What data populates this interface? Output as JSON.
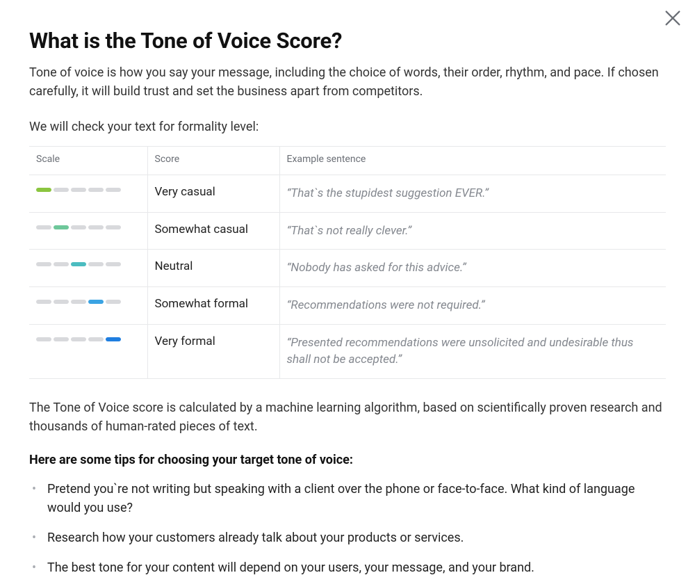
{
  "title": "What is the Tone of Voice Score?",
  "intro": "Tone of voice is how you say your message, including the choice of words, their order, rhythm, and pace. If chosen carefully, it will build trust and set the business apart from competitors.",
  "subintro": "We will check your text for formality level:",
  "table": {
    "columns": [
      "Scale",
      "Score",
      "Example sentence"
    ],
    "segment_count": 5,
    "inactive_color": "#d8d9dc",
    "rows": [
      {
        "active_index": 0,
        "active_color": "#8bc540",
        "score": "Very casual",
        "example": "“That`s the stupidest suggestion EVER.”"
      },
      {
        "active_index": 1,
        "active_color": "#6ec79a",
        "score": "Somewhat casual",
        "example": "“That`s not really clever.”"
      },
      {
        "active_index": 2,
        "active_color": "#4bbcc0",
        "score": "Neutral",
        "example": "“Nobody has asked for this advice.”"
      },
      {
        "active_index": 3,
        "active_color": "#3aa3e3",
        "score": "Somewhat formal",
        "example": "“Recommendations were not required.”"
      },
      {
        "active_index": 4,
        "active_color": "#1f7ee0",
        "score": "Very formal",
        "example": "“Presented recommendations were unsolicited and undesirable thus shall not be accepted.”"
      }
    ]
  },
  "explain": "The Tone of Voice score is calculated by a machine learning algorithm, based on scientifically proven research and thousands of human-rated pieces of text.",
  "tips_heading": "Here are some tips for choosing your target tone of voice:",
  "tips": [
    "Pretend you`re not writing but speaking with a client over the phone or face-to-face. What kind of language would you use?",
    "Research how your customers already talk about your products or services.",
    "The best tone for your content will depend on your users, your message, and your brand."
  ]
}
